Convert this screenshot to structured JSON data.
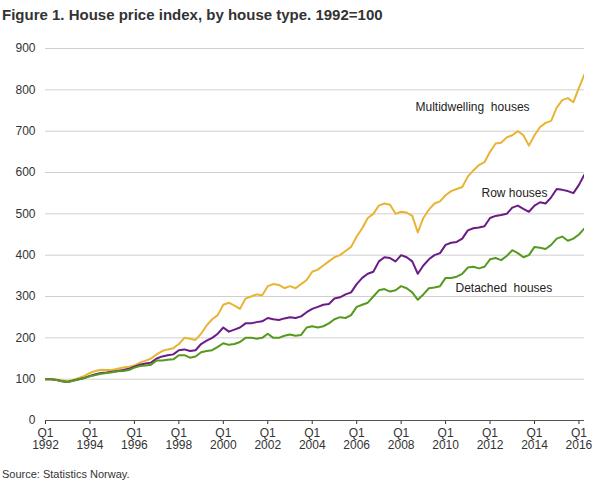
{
  "chart_data": {
    "type": "line",
    "title": "Figure 1. House price index, by house type. 1992=100",
    "caption": "Source: Statistics Norway.",
    "categories": [
      "Q1\n1992",
      null,
      null,
      null,
      null,
      null,
      null,
      null,
      "Q1\n1994",
      null,
      null,
      null,
      null,
      null,
      null,
      null,
      "Q1\n1996",
      null,
      null,
      null,
      null,
      null,
      null,
      null,
      "Q1\n1998",
      null,
      null,
      null,
      null,
      null,
      null,
      null,
      "Q1\n2000",
      null,
      null,
      null,
      null,
      null,
      null,
      null,
      "Q1\n2002",
      null,
      null,
      null,
      null,
      null,
      null,
      null,
      "Q1\n2004",
      null,
      null,
      null,
      null,
      null,
      null,
      null,
      "Q1\n2006",
      null,
      null,
      null,
      null,
      null,
      null,
      null,
      "Q1\n2008",
      null,
      null,
      null,
      null,
      null,
      null,
      null,
      "Q1\n2010",
      null,
      null,
      null,
      null,
      null,
      null,
      null,
      "Q1\n2012",
      null,
      null,
      null,
      null,
      null,
      null,
      null,
      "Q1\n2014",
      null,
      null,
      null,
      null,
      null,
      null,
      null,
      "Q1\n2016",
      null
    ],
    "series": [
      {
        "name": "Multidwelling  houses",
        "color": "#e8b434",
        "values": [
          100,
          100,
          99,
          97,
          95,
          98,
          103,
          108,
          115,
          120,
          123,
          122,
          122,
          125,
          128,
          130,
          133,
          140,
          145,
          150,
          160,
          168,
          172,
          175,
          185,
          200,
          198,
          195,
          210,
          230,
          245,
          255,
          280,
          285,
          278,
          270,
          295,
          300,
          305,
          303,
          325,
          330,
          328,
          320,
          325,
          320,
          330,
          340,
          360,
          365,
          375,
          385,
          395,
          400,
          410,
          420,
          445,
          465,
          490,
          500,
          520,
          525,
          522,
          500,
          505,
          503,
          495,
          455,
          490,
          510,
          525,
          530,
          545,
          555,
          560,
          565,
          590,
          605,
          618,
          625,
          650,
          670,
          672,
          685,
          690,
          700,
          690,
          665,
          690,
          710,
          720,
          725,
          757,
          775,
          780,
          770,
          805,
          838
        ]
      },
      {
        "name": "Row houses",
        "color": "#6a1b86",
        "values": [
          100,
          100,
          98,
          95,
          93,
          97,
          100,
          103,
          108,
          112,
          115,
          116,
          118,
          120,
          122,
          125,
          130,
          135,
          138,
          140,
          150,
          155,
          158,
          160,
          170,
          172,
          168,
          170,
          185,
          193,
          200,
          210,
          225,
          215,
          220,
          225,
          235,
          235,
          238,
          240,
          248,
          245,
          243,
          247,
          250,
          248,
          252,
          262,
          270,
          275,
          280,
          282,
          295,
          298,
          305,
          310,
          330,
          345,
          355,
          360,
          385,
          395,
          393,
          385,
          400,
          395,
          385,
          355,
          375,
          390,
          400,
          405,
          425,
          430,
          432,
          440,
          460,
          465,
          467,
          470,
          490,
          495,
          497,
          500,
          515,
          520,
          512,
          505,
          520,
          528,
          525,
          540,
          560,
          558,
          555,
          550,
          570,
          595
        ]
      },
      {
        "name": "Detached  houses",
        "color": "#559a1f",
        "values": [
          100,
          100,
          98,
          95,
          93,
          96,
          100,
          103,
          107,
          110,
          113,
          115,
          117,
          119,
          120,
          122,
          128,
          132,
          133,
          135,
          145,
          145,
          147,
          148,
          158,
          158,
          152,
          155,
          165,
          168,
          170,
          178,
          187,
          183,
          185,
          190,
          200,
          200,
          198,
          200,
          210,
          200,
          200,
          205,
          208,
          205,
          207,
          225,
          228,
          225,
          228,
          235,
          245,
          250,
          248,
          255,
          275,
          280,
          285,
          300,
          315,
          318,
          312,
          315,
          325,
          320,
          310,
          292,
          305,
          320,
          322,
          325,
          345,
          345,
          348,
          355,
          370,
          372,
          368,
          372,
          390,
          393,
          388,
          398,
          412,
          405,
          395,
          400,
          420,
          418,
          415,
          425,
          440,
          445,
          435,
          440,
          450,
          465
        ]
      }
    ],
    "ylim": [
      0,
      900
    ],
    "yticks": [
      0,
      100,
      200,
      300,
      400,
      500,
      600,
      700,
      800,
      900
    ],
    "grid": true
  }
}
